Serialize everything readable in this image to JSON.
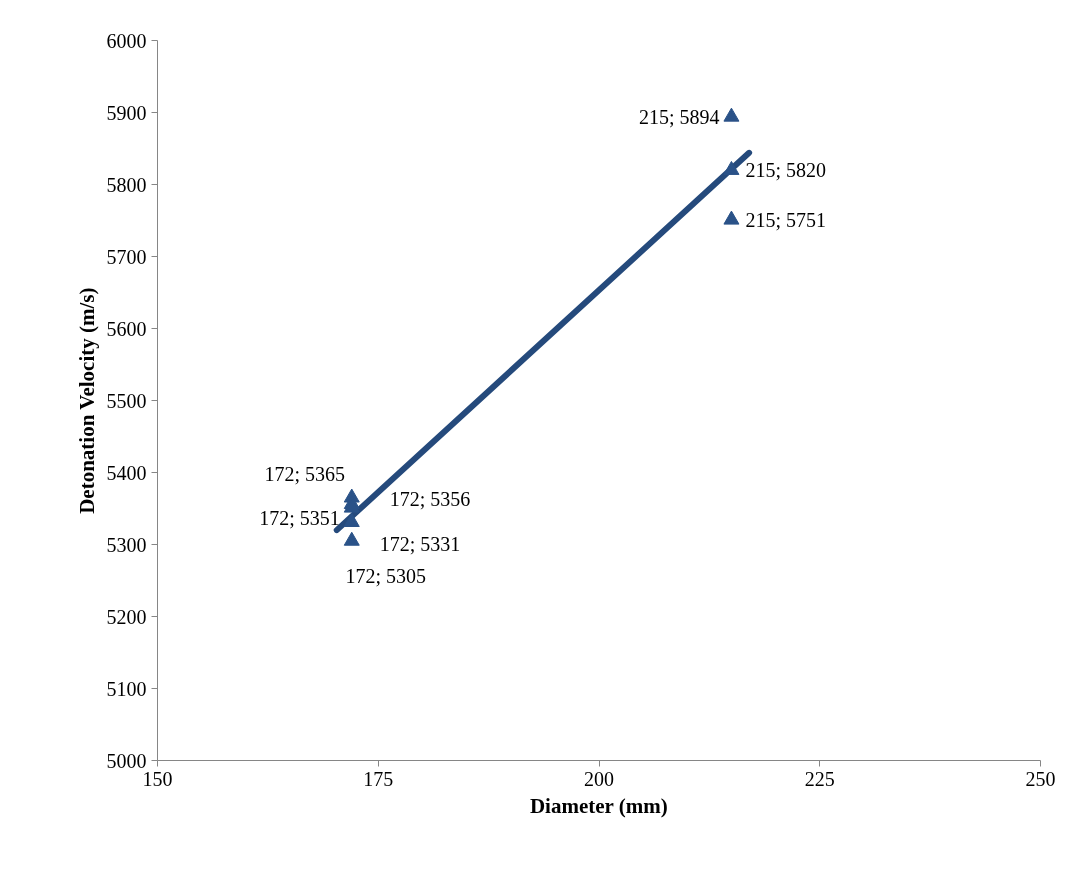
{
  "chart_data": {
    "type": "scatter",
    "xlabel": "Diameter (mm)",
    "ylabel": "Detonation Velocity (m/s)",
    "xlim": [
      150,
      250
    ],
    "xticks": [
      150,
      175,
      200,
      225,
      250
    ],
    "ylim": [
      5000,
      6000
    ],
    "yticks": [
      5000,
      5100,
      5200,
      5300,
      5400,
      5500,
      5600,
      5700,
      5800,
      5900,
      6000
    ],
    "grid": false,
    "series": [
      {
        "marker": "triangle",
        "color": "#2a5288",
        "x": [
          215,
          215,
          215,
          172,
          172,
          172,
          172,
          172
        ],
        "values": [
          5894,
          5820,
          5751,
          5365,
          5356,
          5351,
          5331,
          5305
        ],
        "value_labels": [
          "215; 5894",
          "215; 5820",
          "215; 5751",
          "172; 5365",
          "172; 5356",
          "172; 5351",
          "172; 5331",
          "172; 5305"
        ]
      },
      {
        "type": "line",
        "color": "#254a7c",
        "line_style": "solid",
        "x": [
          170.3,
          217
        ],
        "values": [
          5320,
          5844
        ]
      }
    ]
  }
}
